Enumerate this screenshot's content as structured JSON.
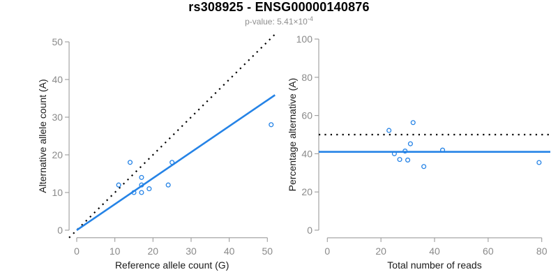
{
  "header": {
    "title": "rs308925 - ENSG00000140876",
    "subtitle_base": "p-value: 5.41×10",
    "subtitle_exponent": "-4"
  },
  "colors": {
    "accent_blue": "#2583e6",
    "line_black": "#000000",
    "axis_gray": "#9c9c9c",
    "tick_label_gray": "#8a8a8a",
    "axis_title_color": "#1a1a1a",
    "subtitle_gray": "#8e8e8e",
    "background": "#ffffff"
  },
  "chart_data": [
    {
      "id": "allele-count-scatter",
      "type": "scatter",
      "xlabel": "Reference allele count (G)",
      "ylabel": "Alternative allele count (A)",
      "xlim": [
        0,
        50
      ],
      "ylim": [
        0,
        50
      ],
      "x_ticks": [
        0,
        10,
        20,
        30,
        40,
        50
      ],
      "y_ticks": [
        0,
        10,
        20,
        30,
        40,
        50
      ],
      "grid": false,
      "legend": null,
      "points": [
        [
          11,
          12
        ],
        [
          14,
          18
        ],
        [
          15,
          10
        ],
        [
          17,
          10
        ],
        [
          17,
          12
        ],
        [
          17,
          14
        ],
        [
          19,
          11
        ],
        [
          24,
          12
        ],
        [
          25,
          18
        ],
        [
          51,
          28
        ]
      ],
      "lines": [
        {
          "name": "identity-line",
          "style": "dotted",
          "color": "#000000",
          "slope": 1,
          "intercept": 0
        },
        {
          "name": "allelic-ratio-fit-line",
          "style": "solid",
          "color": "#2583e6",
          "slope": 0.69,
          "intercept": 0,
          "clip_x_min": 0
        }
      ]
    },
    {
      "id": "percentage-scatter",
      "type": "scatter",
      "xlabel": "Total number of reads",
      "ylabel": "Percentage alternative (A)",
      "xlim": [
        0,
        80
      ],
      "ylim": [
        0,
        100
      ],
      "x_ticks": [
        0,
        20,
        40,
        60,
        80
      ],
      "y_ticks": [
        0,
        20,
        40,
        60,
        80,
        100
      ],
      "grid": false,
      "legend": null,
      "points": [
        [
          23,
          52.2
        ],
        [
          25,
          40
        ],
        [
          27,
          37
        ],
        [
          29,
          41.4
        ],
        [
          30,
          36.7
        ],
        [
          31,
          45.2
        ],
        [
          32,
          56.3
        ],
        [
          36,
          33.3
        ],
        [
          43,
          41.9
        ],
        [
          79,
          35.4
        ]
      ],
      "lines": [
        {
          "name": "expected-50pct-line",
          "style": "dotted",
          "color": "#000000",
          "slope": 0,
          "intercept": 50
        },
        {
          "name": "mean-percentage-line",
          "style": "solid",
          "color": "#2583e6",
          "slope": 0,
          "intercept": 41
        }
      ]
    }
  ]
}
